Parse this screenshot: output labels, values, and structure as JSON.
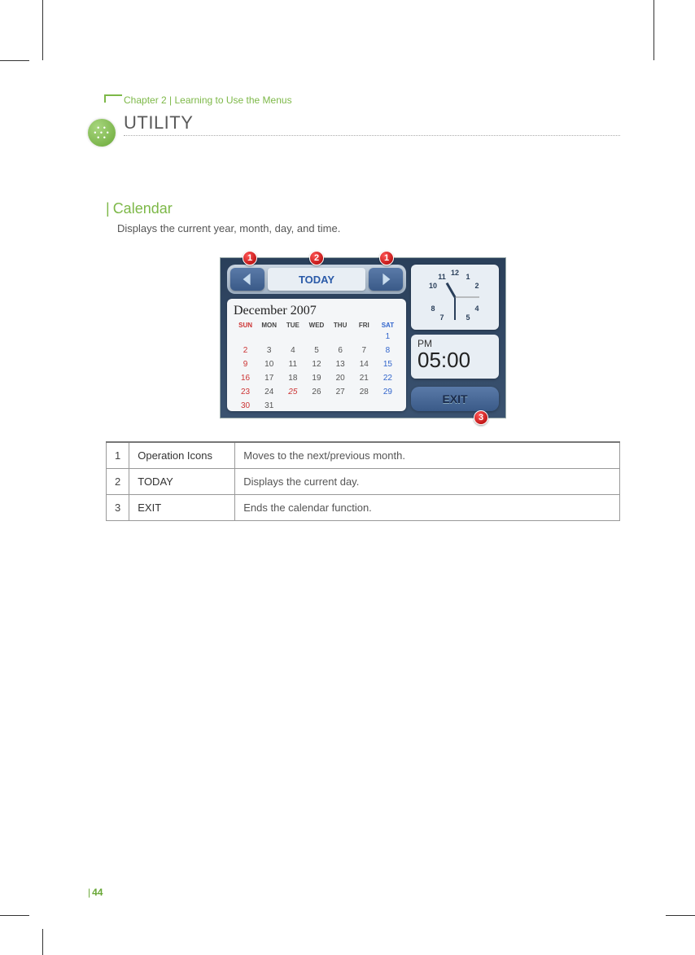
{
  "header": {
    "chapter": "Chapter 2 | Learning to Use the Menus",
    "title": "UTILITY"
  },
  "section": {
    "pipe": "|",
    "title": "Calendar",
    "desc": "Displays the current year, month, day, and time."
  },
  "screenshot": {
    "today_label": "TODAY",
    "month_year": "December  2007",
    "dow": [
      "SUN",
      "MON",
      "TUE",
      "WED",
      "THU",
      "FRI",
      "SAT"
    ],
    "rows": [
      [
        "",
        "",
        "",
        "",
        "",
        "",
        "1"
      ],
      [
        "2",
        "3",
        "4",
        "5",
        "6",
        "7",
        "8"
      ],
      [
        "9",
        "10",
        "11",
        "12",
        "13",
        "14",
        "15"
      ],
      [
        "16",
        "17",
        "18",
        "19",
        "20",
        "21",
        "22"
      ],
      [
        "23",
        "24",
        "25",
        "26",
        "27",
        "28",
        "29"
      ],
      [
        "30",
        "31",
        "",
        "",
        "",
        "",
        ""
      ]
    ],
    "today_cell": "25",
    "clock_numbers": [
      "12",
      "1",
      "2",
      "4",
      "5",
      "7",
      "8",
      "10",
      "11"
    ],
    "clock_pos": [
      [
        36,
        6
      ],
      [
        52,
        11
      ],
      [
        63,
        22
      ],
      [
        63,
        50
      ],
      [
        52,
        61
      ],
      [
        20,
        61
      ],
      [
        9,
        50
      ],
      [
        9,
        22
      ],
      [
        20,
        11
      ]
    ],
    "ampm": "PM",
    "time": "05:00",
    "exit_label": "EXIT",
    "badges": {
      "b1": "1",
      "b2": "2",
      "b3": "1",
      "b4": "3"
    }
  },
  "legend": {
    "rows": [
      {
        "n": "1",
        "name": "Operation Icons",
        "desc": "Moves to the next/previous month."
      },
      {
        "n": "2",
        "name": "TODAY",
        "desc": "Displays the current day."
      },
      {
        "n": "3",
        "name": "EXIT",
        "desc": "Ends the calendar function."
      }
    ]
  },
  "page_number": "44"
}
